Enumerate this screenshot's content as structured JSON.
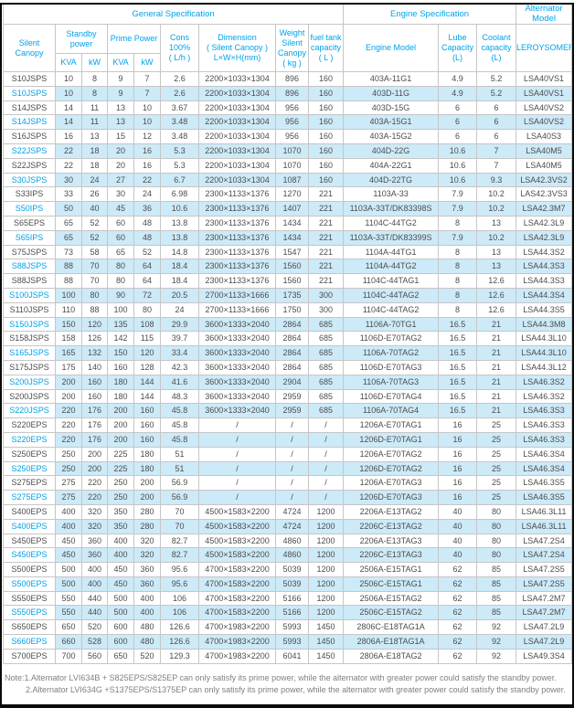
{
  "colors": {
    "accent": "#00a2e8",
    "row_alt": "#cdeaf8",
    "border": "#c6c6c6",
    "text": "#4d4d4d",
    "note": "#7f7f7f"
  },
  "table": {
    "groups": [
      {
        "label": "General Specification"
      },
      {
        "label": "Engine Specification"
      },
      {
        "label": "Alternator Model"
      }
    ],
    "columns": {
      "silent_canopy": "Silent\nCanopy",
      "standby_power": "Standby\npower",
      "prime_power": "Prime Power",
      "sub_kva": "KVA",
      "sub_kw": "kW",
      "cons": "Cons\n100%\n( L/h )",
      "dimension": "Dimension\n( Silent Canopy )\nL×W×H(mm)",
      "weight": "Weight\nSilent\nCanopy\n( kg )",
      "fuel_tank": "fuel tank\ncapacity\n( L )",
      "engine_model": "Engine Model",
      "lube_capacity": "Lube\nCapacity\n(L)",
      "coolant_capacity": "Coolant\ncapacity\n(L)",
      "alternator": "LEROYSOMER"
    },
    "rows": [
      [
        "S10JSPS",
        "10",
        "8",
        "9",
        "7",
        "2.6",
        "2200×1033×1304",
        "896",
        "160",
        "403A-11G1",
        "4.9",
        "5.2",
        "LSA40VS1"
      ],
      [
        "S10JSPS",
        "10",
        "8",
        "9",
        "7",
        "2.6",
        "2200×1033×1304",
        "896",
        "160",
        "403D-11G",
        "4.9",
        "5.2",
        "LSA40VS1"
      ],
      [
        "S14JSPS",
        "14",
        "11",
        "13",
        "10",
        "3.67",
        "2200×1033×1304",
        "956",
        "160",
        "403D-15G",
        "6",
        "6",
        "LSA40VS2"
      ],
      [
        "S14JSPS",
        "14",
        "11",
        "13",
        "10",
        "3.48",
        "2200×1033×1304",
        "956",
        "160",
        "403A-15G1",
        "6",
        "6",
        "LSA40VS2"
      ],
      [
        "S16JSPS",
        "16",
        "13",
        "15",
        "12",
        "3.48",
        "2200×1033×1304",
        "956",
        "160",
        "403A-15G2",
        "6",
        "6",
        "LSA40S3"
      ],
      [
        "S22JSPS",
        "22",
        "18",
        "20",
        "16",
        "5.3",
        "2200×1033×1304",
        "1070",
        "160",
        "404D-22G",
        "10.6",
        "7",
        "LSA40M5"
      ],
      [
        "S22JSPS",
        "22",
        "18",
        "20",
        "16",
        "5.3",
        "2200×1033×1304",
        "1070",
        "160",
        "404A-22G1",
        "10.6",
        "7",
        "LSA40M5"
      ],
      [
        "S30JSPS",
        "30",
        "24",
        "27",
        "22",
        "6.7",
        "2200×1033×1304",
        "1087",
        "160",
        "404D-22TG",
        "10.6",
        "9.3",
        "LSA42.3VS2"
      ],
      [
        "S33IPS",
        "33",
        "26",
        "30",
        "24",
        "6.98",
        "2300×1133×1376",
        "1270",
        "221",
        "1103A-33",
        "7.9",
        "10.2",
        "LAS42.3VS3"
      ],
      [
        "S50IPS",
        "50",
        "40",
        "45",
        "36",
        "10.6",
        "2300×1133×1376",
        "1407",
        "221",
        "1103A-33T/DK83398S",
        "7.9",
        "10.2",
        "LSA42.3M7"
      ],
      [
        "S65EPS",
        "65",
        "52",
        "60",
        "48",
        "13.8",
        "2300×1133×1376",
        "1434",
        "221",
        "1104C-44TG2",
        "8",
        "13",
        "LSA42.3L9"
      ],
      [
        "S65IPS",
        "65",
        "52",
        "60",
        "48",
        "13.8",
        "2300×1133×1376",
        "1434",
        "221",
        "1103A-33T/DK83399S",
        "7.9",
        "10.2",
        "LSA42.3L9"
      ],
      [
        "S75JSPS",
        "73",
        "58",
        "65",
        "52",
        "14.8",
        "2300×1133×1376",
        "1547",
        "221",
        "1104A-44TG1",
        "8",
        "13",
        "LSA44.3S2"
      ],
      [
        "S88JSPS",
        "88",
        "70",
        "80",
        "64",
        "18.4",
        "2300×1133×1376",
        "1560",
        "221",
        "1104A-44TG2",
        "8",
        "13",
        "LSA44.3S3"
      ],
      [
        "S88JSPS",
        "88",
        "70",
        "80",
        "64",
        "18.4",
        "2300×1133×1376",
        "1560",
        "221",
        "1104C-44TAG1",
        "8",
        "12.6",
        "LSA44.3S3"
      ],
      [
        "S100JSPS",
        "100",
        "80",
        "90",
        "72",
        "20.5",
        "2700×1133×1666",
        "1735",
        "300",
        "1104C-44TAG2",
        "8",
        "12.6",
        "LSA44.3S4"
      ],
      [
        "S110JSPS",
        "110",
        "88",
        "100",
        "80",
        "24",
        "2700×1133×1666",
        "1750",
        "300",
        "1104C-44TAG2",
        "8",
        "12.6",
        "LSA44.3S5"
      ],
      [
        "S150JSPS",
        "150",
        "120",
        "135",
        "108",
        "29.9",
        "3600×1333×2040",
        "2864",
        "685",
        "1106A-70TG1",
        "16.5",
        "21",
        "LSA44.3M8"
      ],
      [
        "S158JSPS",
        "158",
        "126",
        "142",
        "115",
        "39.7",
        "3600×1333×2040",
        "2864",
        "685",
        "1106D-E70TAG2",
        "16.5",
        "21",
        "LSA44.3L10"
      ],
      [
        "S165JSPS",
        "165",
        "132",
        "150",
        "120",
        "33.4",
        "3600×1333×2040",
        "2864",
        "685",
        "1106A-70TAG2",
        "16.5",
        "21",
        "LSA44.3L10"
      ],
      [
        "S175JSPS",
        "175",
        "140",
        "160",
        "128",
        "42.3",
        "3600×1333×2040",
        "2864",
        "685",
        "1106D-E70TAG3",
        "16.5",
        "21",
        "LSA44.3L12"
      ],
      [
        "S200JSPS",
        "200",
        "160",
        "180",
        "144",
        "41.6",
        "3600×1333×2040",
        "2904",
        "685",
        "1106A-70TAG3",
        "16.5",
        "21",
        "LSA46.3S2"
      ],
      [
        "S200JSPS",
        "200",
        "160",
        "180",
        "144",
        "48.3",
        "3600×1333×2040",
        "2959",
        "685",
        "1106D-E70TAG4",
        "16.5",
        "21",
        "LSA46.3S2"
      ],
      [
        "S220JSPS",
        "220",
        "176",
        "200",
        "160",
        "45.8",
        "3600×1333×2040",
        "2959",
        "685",
        "1106A-70TAG4",
        "16.5",
        "21",
        "LSA46.3S3"
      ],
      [
        "S220EPS",
        "220",
        "176",
        "200",
        "160",
        "45.8",
        "/",
        "/",
        "/",
        "1206A-E70TAG1",
        "16",
        "25",
        "LSA46.3S3"
      ],
      [
        "S220EPS",
        "220",
        "176",
        "200",
        "160",
        "45.8",
        "/",
        "/",
        "/",
        "1206D-E70TAG1",
        "16",
        "25",
        "LSA46.3S3"
      ],
      [
        "S250EPS",
        "250",
        "200",
        "225",
        "180",
        "51",
        "/",
        "/",
        "/",
        "1206A-E70TAG2",
        "16",
        "25",
        "LSA46.3S4"
      ],
      [
        "S250EPS",
        "250",
        "200",
        "225",
        "180",
        "51",
        "/",
        "/",
        "/",
        "1206D-E70TAG2",
        "16",
        "25",
        "LSA46.3S4"
      ],
      [
        "S275EPS",
        "275",
        "220",
        "250",
        "200",
        "56.9",
        "/",
        "/",
        "/",
        "1206A-E70TAG3",
        "16",
        "25",
        "LSA46.3S5"
      ],
      [
        "S275EPS",
        "275",
        "220",
        "250",
        "200",
        "56.9",
        "/",
        "/",
        "/",
        "1206D-E70TAG3",
        "16",
        "25",
        "LSA46.3S5"
      ],
      [
        "S400EPS",
        "400",
        "320",
        "350",
        "280",
        "70",
        "4500×1583×2200",
        "4724",
        "1200",
        "2206A-E13TAG2",
        "40",
        "80",
        "LSA46.3L11"
      ],
      [
        "S400EPS",
        "400",
        "320",
        "350",
        "280",
        "70",
        "4500×1583×2200",
        "4724",
        "1200",
        "2206C-E13TAG2",
        "40",
        "80",
        "LSA46.3L11"
      ],
      [
        "S450EPS",
        "450",
        "360",
        "400",
        "320",
        "82.7",
        "4500×1583×2200",
        "4860",
        "1200",
        "2206A-E13TAG3",
        "40",
        "80",
        "LSA47.2S4"
      ],
      [
        "S450EPS",
        "450",
        "360",
        "400",
        "320",
        "82.7",
        "4500×1583×2200",
        "4860",
        "1200",
        "2206C-E13TAG3",
        "40",
        "80",
        "LSA47.2S4"
      ],
      [
        "S500EPS",
        "500",
        "400",
        "450",
        "360",
        "95.6",
        "4700×1583×2200",
        "5039",
        "1200",
        "2506A-E15TAG1",
        "62",
        "85",
        "LSA47.2S5"
      ],
      [
        "S500EPS",
        "500",
        "400",
        "450",
        "360",
        "95.6",
        "4700×1583×2200",
        "5039",
        "1200",
        "2506C-E15TAG1",
        "62",
        "85",
        "LSA47.2S5"
      ],
      [
        "S550EPS",
        "550",
        "440",
        "500",
        "400",
        "106",
        "4700×1583×2200",
        "5166",
        "1200",
        "2506A-E15TAG2",
        "62",
        "85",
        "LSA47.2M7"
      ],
      [
        "S550EPS",
        "550",
        "440",
        "500",
        "400",
        "106",
        "4700×1583×2200",
        "5166",
        "1200",
        "2506C-E15TAG2",
        "62",
        "85",
        "LSA47.2M7"
      ],
      [
        "S650EPS",
        "650",
        "520",
        "600",
        "480",
        "126.6",
        "4700×1983×2200",
        "5993",
        "1450",
        "2806C-E18TAG1A",
        "62",
        "92",
        "LSA47.2L9"
      ],
      [
        "S660EPS",
        "660",
        "528",
        "600",
        "480",
        "126.6",
        "4700×1983×2200",
        "5993",
        "1450",
        "2806A-E18TAG1A",
        "62",
        "92",
        "LSA47.2L9"
      ],
      [
        "S700EPS",
        "700",
        "560",
        "650",
        "520",
        "129.3",
        "4700×1983×2200",
        "6041",
        "1450",
        "2806A-E18TAG2",
        "62",
        "92",
        "LSA49.3S4"
      ]
    ]
  },
  "notes": [
    "Note:1.Alternator LVI634B + S825EPS/S825EP can only satisfy its prime power, while the alternator with greater power could satisfy the standby power.",
    "2.Alternator LVI634G +S1375EPS/S1375EP can only satisfy its prime power, while the alternator with greater power could satisfy the standby power."
  ]
}
